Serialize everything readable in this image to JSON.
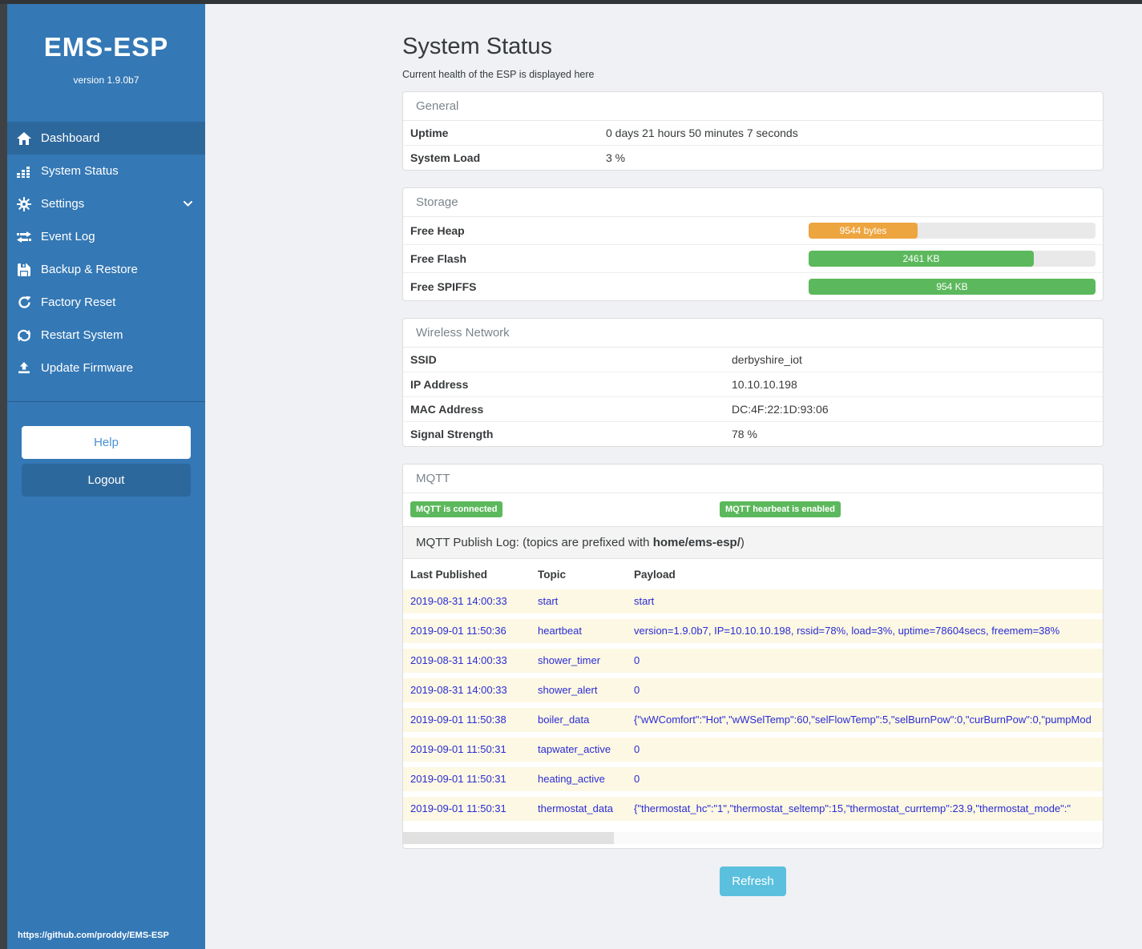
{
  "app": {
    "title": "EMS-ESP",
    "version": "version 1.9.0b7",
    "footer_link": "https://github.com/proddy/EMS-ESP"
  },
  "sidebar": {
    "items": [
      {
        "label": "Dashboard",
        "icon": "home-icon",
        "active": true
      },
      {
        "label": "System Status",
        "icon": "system-status-icon"
      },
      {
        "label": "Settings",
        "icon": "settings-icon",
        "chevron": true
      },
      {
        "label": "Event Log",
        "icon": "event-log-icon"
      },
      {
        "label": "Backup & Restore",
        "icon": "backup-icon"
      },
      {
        "label": "Factory Reset",
        "icon": "factory-reset-icon"
      },
      {
        "label": "Restart System",
        "icon": "restart-icon"
      },
      {
        "label": "Update Firmware",
        "icon": "update-firmware-icon"
      }
    ],
    "help_label": "Help",
    "logout_label": "Logout"
  },
  "page": {
    "title": "System Status",
    "subtitle": "Current health of the ESP is displayed here"
  },
  "panels": {
    "general": {
      "heading": "General",
      "rows": [
        {
          "label": "Uptime",
          "value": "0 days 21 hours 50 minutes 7 seconds"
        },
        {
          "label": "System Load",
          "value": "3 %"
        }
      ]
    },
    "storage": {
      "heading": "Storage",
      "rows": [
        {
          "label": "Free Heap",
          "bar_label": "9544 bytes",
          "percent": 38,
          "color": "#eda53f"
        },
        {
          "label": "Free Flash",
          "bar_label": "2461 KB",
          "percent": 78.5,
          "color": "#5cb85c"
        },
        {
          "label": "Free SPIFFS",
          "bar_label": "954 KB",
          "percent": 100,
          "color": "#5cb85c"
        }
      ]
    },
    "wireless": {
      "heading": "Wireless Network",
      "rows": [
        {
          "label": "SSID",
          "value": "derbyshire_iot"
        },
        {
          "label": "IP Address",
          "value": "10.10.10.198"
        },
        {
          "label": "MAC Address",
          "value": "DC:4F:22:1D:93:06"
        },
        {
          "label": "Signal Strength",
          "value": "78 %"
        }
      ]
    },
    "mqtt": {
      "heading": "MQTT",
      "badges": [
        "MQTT is connected",
        "MQTT hearbeat is enabled"
      ],
      "publish_log_prefix_text": "MQTT Publish Log: (topics are prefixed with ",
      "publish_log_prefix_bold": "home/ems-esp/",
      "publish_log_suffix": ")",
      "table": {
        "headers": [
          "Last Published",
          "Topic",
          "Payload"
        ],
        "rows": [
          {
            "time": "2019-08-31 14:00:33",
            "topic": "start",
            "payload": "start"
          },
          {
            "time": "2019-09-01 11:50:36",
            "topic": "heartbeat",
            "payload": "version=1.9.0b7, IP=10.10.10.198, rssid=78%, load=3%, uptime=78604secs, freemem=38%"
          },
          {
            "time": "2019-08-31 14:00:33",
            "topic": "shower_timer",
            "payload": "0"
          },
          {
            "time": "2019-08-31 14:00:33",
            "topic": "shower_alert",
            "payload": "0"
          },
          {
            "time": "2019-09-01 11:50:38",
            "topic": "boiler_data",
            "payload": "{\"wWComfort\":\"Hot\",\"wWSelTemp\":60,\"selFlowTemp\":5,\"selBurnPow\":0,\"curBurnPow\":0,\"pumpMod"
          },
          {
            "time": "2019-09-01 11:50:31",
            "topic": "tapwater_active",
            "payload": "0"
          },
          {
            "time": "2019-09-01 11:50:31",
            "topic": "heating_active",
            "payload": "0"
          },
          {
            "time": "2019-09-01 11:50:31",
            "topic": "thermostat_data",
            "payload": "{\"thermostat_hc\":\"1\",\"thermostat_seltemp\":15,\"thermostat_currtemp\":23.9,\"thermostat_mode\":\""
          }
        ]
      }
    }
  },
  "refresh_label": "Refresh",
  "colors": {
    "sidebar": "#3478b5",
    "sidebar_active": "#2d689c",
    "success": "#5cb85c",
    "warning": "#eda53f",
    "info": "#5bc0de",
    "log_text": "#2b2bd5",
    "log_row_bg": "#fcf8e3"
  }
}
